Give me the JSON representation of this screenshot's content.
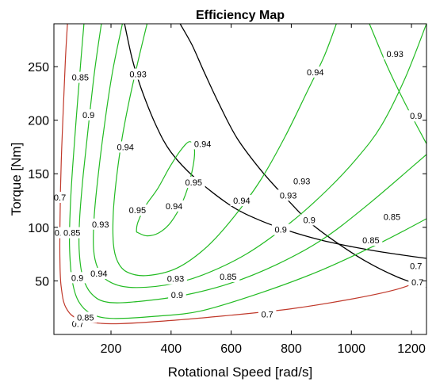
{
  "chart_data": {
    "type": "contour",
    "title": "Efficiency Map",
    "xlabel": "Rotational Speed [rad/s]",
    "ylabel": "Torque [Nm]",
    "xlim": [
      10,
      1250
    ],
    "ylim": [
      0,
      290
    ],
    "x_ticks": [
      200,
      400,
      600,
      800,
      1000,
      1200
    ],
    "y_ticks": [
      50,
      100,
      150,
      200,
      250
    ],
    "grid": false,
    "contour_colors": {
      "0.7": "#c0392b",
      "0.85": "#22bb22",
      "0.9": "#22bb22",
      "0.93": "#22bb22",
      "0.94": "#22bb22",
      "0.95": "#22bb22"
    },
    "boundary_color": "#000000",
    "efficiency_contours": [
      {
        "level": 0.7,
        "label": "0.7",
        "color": "#c0392b",
        "segments": [
          [
            [
              55,
              290
            ],
            [
              48,
              255
            ],
            [
              42,
              215
            ],
            [
              36,
              175
            ],
            [
              32,
              135
            ],
            [
              30,
              100
            ],
            [
              30,
              70
            ],
            [
              34,
              45
            ],
            [
              50,
              25
            ],
            [
              95,
              14
            ],
            [
              200,
              10
            ],
            [
              400,
              13
            ],
            [
              600,
              18
            ],
            [
              800,
              24
            ],
            [
              1000,
              33
            ],
            [
              1150,
              42
            ],
            [
              1250,
              52
            ]
          ]
        ],
        "labels": [
          [
            30,
            128
          ],
          [
            90,
            10
          ],
          [
            720,
            19
          ],
          [
            1220,
            49
          ],
          [
            32,
            95
          ]
        ]
      },
      {
        "level": 0.85,
        "label": "0.85",
        "color": "#22bb22",
        "segments": [
          [
            [
              110,
              290
            ],
            [
              98,
              250
            ],
            [
              84,
              200
            ],
            [
              72,
              155
            ],
            [
              64,
              115
            ],
            [
              62,
              82
            ],
            [
              70,
              52
            ],
            [
              90,
              32
            ],
            [
              130,
              20
            ],
            [
              200,
              15
            ],
            [
              350,
              17
            ],
            [
              500,
              22
            ],
            [
              700,
              39
            ],
            [
              900,
              60
            ],
            [
              1100,
              86
            ],
            [
              1250,
              108
            ]
          ]
        ],
        "labels": [
          [
            98,
            240
          ],
          [
            70,
            95
          ],
          [
            115,
            16
          ],
          [
            590,
            54
          ],
          [
            1135,
            110
          ]
        ]
      },
      {
        "level": 0.9,
        "label": "0.9",
        "color": "#22bb22",
        "segments": [
          [
            [
              168,
              290
            ],
            [
              145,
              245
            ],
            [
              125,
              195
            ],
            [
              108,
              150
            ],
            [
              96,
              110
            ],
            [
              94,
              80
            ],
            [
              105,
              55
            ],
            [
              135,
              38
            ],
            [
              190,
              30
            ],
            [
              300,
              31
            ],
            [
              450,
              37
            ],
            [
              600,
              48
            ],
            [
              750,
              65
            ],
            [
              900,
              88
            ],
            [
              1050,
              120
            ],
            [
              1250,
              168
            ]
          ],
          [
            [
              1060,
              290
            ],
            [
              1120,
              250
            ],
            [
              1180,
              215
            ],
            [
              1250,
              178
            ]
          ]
        ],
        "labels": [
          [
            125,
            205
          ],
          [
            88,
            53
          ],
          [
            420,
            37
          ],
          [
            860,
            107
          ],
          [
            1215,
            204
          ]
        ]
      },
      {
        "level": 0.93,
        "label": "0.93",
        "color": "#22bb22",
        "segments": [
          [
            [
              238,
              290
            ],
            [
              205,
              245
            ],
            [
              178,
              195
            ],
            [
              158,
              150
            ],
            [
              144,
              110
            ],
            [
              142,
              80
            ],
            [
              156,
              62
            ],
            [
              190,
              50
            ],
            [
              260,
              44
            ],
            [
              380,
              46
            ],
            [
              500,
              55
            ],
            [
              650,
              75
            ],
            [
              800,
              105
            ],
            [
              920,
              135
            ],
            [
              1020,
              165
            ],
            [
              1100,
              195
            ],
            [
              1180,
              240
            ],
            [
              1250,
              290
            ]
          ]
        ],
        "labels": [
          [
            165,
            103
          ],
          [
            415,
            52
          ],
          [
            835,
            143
          ],
          [
            1145,
            262
          ]
        ]
      },
      {
        "level": 0.94,
        "label": "0.94",
        "color": "#22bb22",
        "segments": [
          [
            [
              320,
              290
            ],
            [
              290,
              255
            ],
            [
              262,
              220
            ],
            [
              238,
              185
            ],
            [
              220,
              150
            ],
            [
              208,
              115
            ],
            [
              208,
              85
            ],
            [
              222,
              68
            ],
            [
              255,
              58
            ],
            [
              320,
              55
            ],
            [
              420,
              62
            ],
            [
              520,
              82
            ],
            [
              610,
              110
            ],
            [
              700,
              145
            ],
            [
              780,
              185
            ],
            [
              850,
              225
            ],
            [
              910,
              260
            ],
            [
              950,
              290
            ]
          ]
        ],
        "labels": [
          [
            248,
            175
          ],
          [
            160,
            57
          ],
          [
            635,
            125
          ],
          [
            880,
            245
          ]
        ]
      },
      {
        "level": 0.95,
        "label": "0.95",
        "color": "#22bb22",
        "closed": true,
        "segments": [
          [
            [
              290,
              95
            ],
            [
              320,
              92
            ],
            [
              360,
              95
            ],
            [
              400,
              105
            ],
            [
              440,
              125
            ],
            [
              468,
              150
            ],
            [
              478,
              172
            ],
            [
              462,
              180
            ],
            [
              432,
              172
            ],
            [
              395,
              156
            ],
            [
              355,
              136
            ],
            [
              315,
              120
            ],
            [
              290,
              105
            ],
            [
              285,
              97
            ]
          ]
        ],
        "labels": [
          [
            288,
            116
          ],
          [
            475,
            142
          ]
        ]
      }
    ],
    "boundary_curves": [
      {
        "name": "upper",
        "points": [
          [
            245,
            290
          ],
          [
            270,
            258
          ],
          [
            300,
            230
          ],
          [
            350,
            195
          ],
          [
            400,
            170
          ],
          [
            480,
            146
          ],
          [
            600,
            120
          ],
          [
            700,
            106
          ],
          [
            800,
            96
          ],
          [
            900,
            88
          ],
          [
            1000,
            82
          ],
          [
            1100,
            77
          ],
          [
            1250,
            71
          ]
        ]
      },
      {
        "name": "lower",
        "points": [
          [
            430,
            290
          ],
          [
            470,
            270
          ],
          [
            510,
            245
          ],
          [
            560,
            215
          ],
          [
            620,
            183
          ],
          [
            700,
            153
          ],
          [
            780,
            128
          ],
          [
            860,
            105
          ],
          [
            950,
            86
          ],
          [
            1050,
            68
          ],
          [
            1150,
            54
          ],
          [
            1250,
            44
          ]
        ]
      }
    ],
    "boundary_labels": [
      {
        "text": "0.93",
        "x": 290,
        "y": 243
      },
      {
        "text": "0.94",
        "x": 410,
        "y": 120
      },
      {
        "text": "0.93",
        "x": 790,
        "y": 130
      },
      {
        "text": "0.9",
        "x": 765,
        "y": 98
      },
      {
        "text": "0.94",
        "x": 505,
        "y": 178
      },
      {
        "text": "0.85",
        "x": 1065,
        "y": 88
      },
      {
        "text": "0.7",
        "x": 1215,
        "y": 64
      }
    ]
  }
}
